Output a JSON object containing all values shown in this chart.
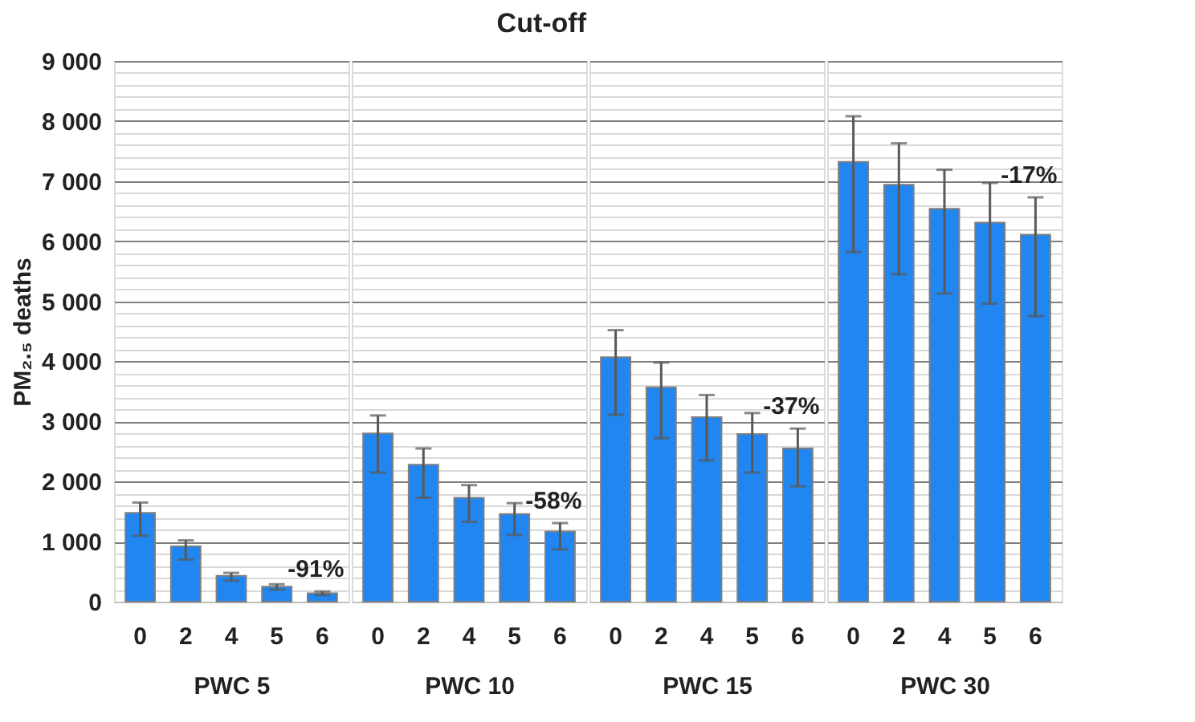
{
  "chart_data": [
    {
      "type": "bar",
      "ylabel": "PM₂.₅ deaths",
      "xlabel": "PWC 5",
      "categories": [
        "0",
        "2",
        "4",
        "5",
        "6"
      ],
      "series": [
        {
          "color": "#2186f0",
          "values": [
            1480,
            920,
            430,
            250,
            140
          ],
          "errors": [
            [
              1100,
              1650
            ],
            [
              700,
              1020
            ],
            [
              350,
              480
            ],
            [
              200,
              290
            ],
            [
              110,
              170
            ]
          ]
        }
      ],
      "annotations": [
        "-91%"
      ],
      "ylim": [
        0,
        9000
      ],
      "yticks": [
        {
          "value": 0,
          "label": "0"
        },
        {
          "value": 200,
          "label": null
        },
        {
          "value": 400,
          "label": null
        },
        {
          "value": 600,
          "label": null
        },
        {
          "value": 800,
          "label": null
        },
        {
          "value": 1000,
          "label": "1 000"
        },
        {
          "value": 1200,
          "label": null
        },
        {
          "value": 1400,
          "label": null
        },
        {
          "value": 1600,
          "label": null
        },
        {
          "value": 1800,
          "label": null
        },
        {
          "value": 2000,
          "label": "2 000"
        },
        {
          "value": 2200,
          "label": null
        },
        {
          "value": 2400,
          "label": null
        },
        {
          "value": 2600,
          "label": null
        },
        {
          "value": 2800,
          "label": null
        },
        {
          "value": 3000,
          "label": "3 000"
        },
        {
          "value": 3200,
          "label": null
        },
        {
          "value": 3400,
          "label": null
        },
        {
          "value": 3600,
          "label": null
        },
        {
          "value": 3800,
          "label": null
        },
        {
          "value": 4000,
          "label": "4 000"
        },
        {
          "value": 4200,
          "label": null
        },
        {
          "value": 4400,
          "label": null
        },
        {
          "value": 4600,
          "label": null
        },
        {
          "value": 4800,
          "label": null
        },
        {
          "value": 5000,
          "label": "5 000"
        },
        {
          "value": 5200,
          "label": null
        },
        {
          "value": 5400,
          "label": null
        },
        {
          "value": 5600,
          "label": null
        },
        {
          "value": 5800,
          "label": null
        },
        {
          "value": 6000,
          "label": "6 000"
        },
        {
          "value": 6200,
          "label": null
        },
        {
          "value": 6400,
          "label": null
        },
        {
          "value": 6600,
          "label": null
        },
        {
          "value": 6800,
          "label": null
        },
        {
          "value": 7000,
          "label": "7 000"
        },
        {
          "value": 7200,
          "label": null
        },
        {
          "value": 7400,
          "label": null
        },
        {
          "value": 7600,
          "label": null
        },
        {
          "value": 7800,
          "label": null
        },
        {
          "value": 8000,
          "label": "8 000"
        },
        {
          "value": 8200,
          "label": null
        },
        {
          "value": 8400,
          "label": null
        },
        {
          "value": 8600,
          "label": null
        },
        {
          "value": 8800,
          "label": null
        },
        {
          "value": 9000,
          "label": "9 000"
        }
      ],
      "grid": "y"
    },
    {
      "type": "bar",
      "title": "Cut-off",
      "xlabel": "PWC 10",
      "categories": [
        "0",
        "2",
        "4",
        "5",
        "6"
      ],
      "series": [
        {
          "color": "#2186f0",
          "values": [
            2800,
            2280,
            1730,
            1460,
            1170
          ],
          "errors": [
            [
              2150,
              3100
            ],
            [
              1730,
              2550
            ],
            [
              1330,
              1940
            ],
            [
              1110,
              1640
            ],
            [
              870,
              1310
            ]
          ]
        }
      ],
      "annotations": [
        "-58%"
      ],
      "ylim": [
        0,
        9000
      ],
      "tick_labels": "x",
      "grid": "y"
    },
    {
      "type": "bar",
      "xlabel": "PWC 15",
      "categories": [
        "0",
        "2",
        "4",
        "5",
        "6"
      ],
      "series": [
        {
          "color": "#2186f0",
          "values": [
            4070,
            3570,
            3070,
            2790,
            2550
          ],
          "errors": [
            [
              3110,
              4520
            ],
            [
              2720,
              3980
            ],
            [
              2350,
              3440
            ],
            [
              2150,
              3140
            ],
            [
              1920,
              2880
            ]
          ]
        }
      ],
      "annotations": [
        "-37%"
      ],
      "ylim": [
        0,
        9000
      ],
      "tick_labels": "x",
      "grid": "y"
    },
    {
      "type": "bar",
      "xlabel": "PWC 30",
      "categories": [
        "0",
        "2",
        "4",
        "5",
        "6"
      ],
      "series": [
        {
          "color": "#2186f0",
          "values": [
            7320,
            6940,
            6540,
            6310,
            6110
          ],
          "errors": [
            [
              5820,
              8080
            ],
            [
              5450,
              7630
            ],
            [
              5130,
              7190
            ],
            [
              4960,
              6970
            ],
            [
              4750,
              6730
            ]
          ]
        }
      ],
      "annotations": [
        "-17%"
      ],
      "ylim": [
        0,
        9000
      ],
      "tick_labels": "x",
      "grid": "y"
    }
  ]
}
